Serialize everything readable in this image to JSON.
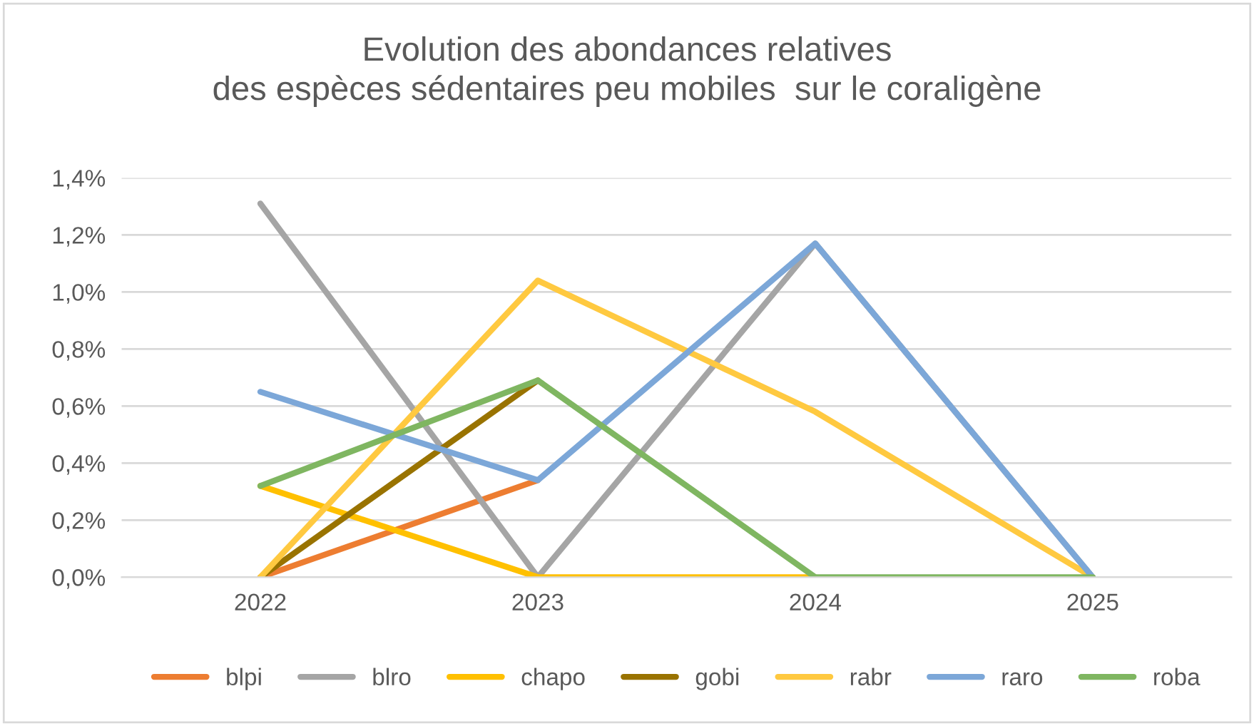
{
  "chart_data": {
    "type": "line",
    "title": "Evolution des abondances relatives\ndes espèces sédentaires peu mobiles  sur le coraligène",
    "categories": [
      "2022",
      "2023",
      "2024",
      "2025"
    ],
    "series": [
      {
        "name": "blpi",
        "color": "#ed7d31",
        "values": [
          0,
          0.34,
          null,
          null
        ]
      },
      {
        "name": "blro",
        "color": "#a5a5a5",
        "values": [
          1.31,
          0,
          1.17,
          0
        ]
      },
      {
        "name": "chapo",
        "color": "#ffc000",
        "values": [
          0.32,
          0,
          0,
          null
        ]
      },
      {
        "name": "gobi",
        "color": "#997300",
        "values": [
          0,
          0.69,
          null,
          null
        ]
      },
      {
        "name": "rabr",
        "color": "#ffc940",
        "values": [
          0,
          1.04,
          0.58,
          0
        ]
      },
      {
        "name": "raro",
        "color": "#7ca7d8",
        "values": [
          0.65,
          0.34,
          1.17,
          0
        ]
      },
      {
        "name": "roba",
        "color": "#7fb661",
        "values": [
          0.32,
          0.69,
          0,
          0
        ]
      }
    ],
    "ylim": [
      0,
      1.4
    ],
    "yticks": [
      {
        "value": 0,
        "label": "0,0%"
      },
      {
        "value": 0.2,
        "label": "0,2%"
      },
      {
        "value": 0.4,
        "label": "0,4%"
      },
      {
        "value": 0.6,
        "label": "0,6%"
      },
      {
        "value": 0.8,
        "label": "0,8%"
      },
      {
        "value": 1.0,
        "label": "1,0%"
      },
      {
        "value": 1.2,
        "label": "1,2%"
      },
      {
        "value": 1.4,
        "label": "1,4%"
      }
    ],
    "grid": "y",
    "legend": "bottom",
    "marker": "none",
    "line_style": "solid"
  }
}
